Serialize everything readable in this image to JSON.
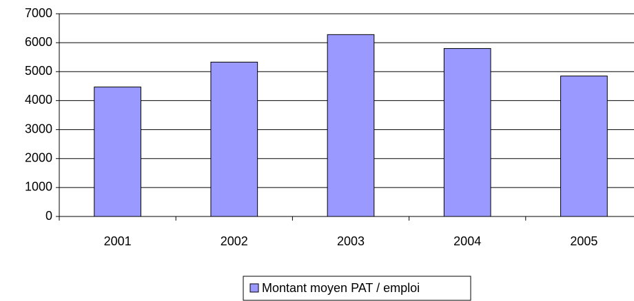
{
  "chart_data": {
    "type": "bar",
    "categories": [
      "2001",
      "2002",
      "2003",
      "2004",
      "2005"
    ],
    "series": [
      {
        "name": "Montant moyen PAT / emploi",
        "color": "#9999ff",
        "values": [
          4470,
          5330,
          6280,
          5800,
          4850
        ]
      }
    ],
    "ylim": [
      0,
      7000
    ],
    "yticks": [
      0,
      1000,
      2000,
      3000,
      4000,
      5000,
      6000,
      7000
    ],
    "grid": true,
    "legend": "bottom"
  }
}
